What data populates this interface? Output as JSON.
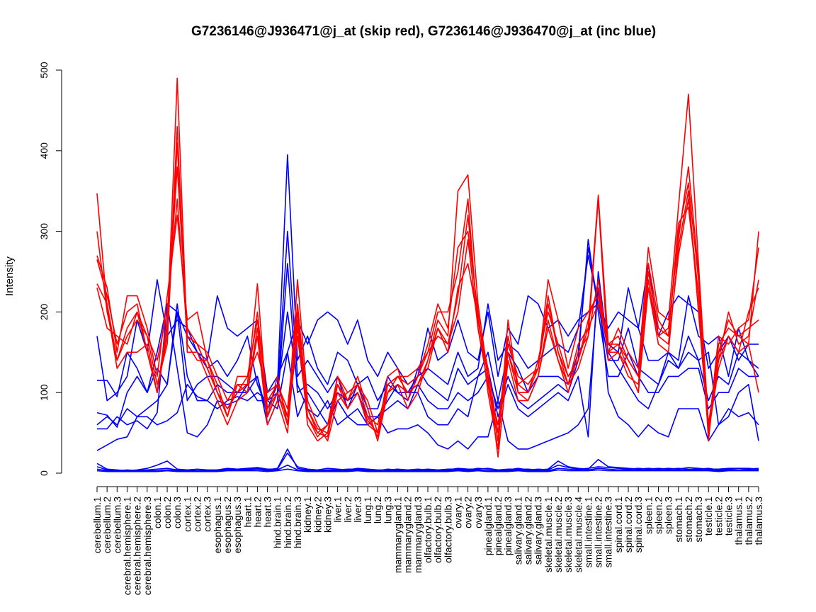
{
  "chart_data": {
    "type": "line",
    "title": "G7236146@J936471@j_at (skip red), G7236146@J936470@j_at (inc blue)",
    "xlabel": "",
    "ylabel": "Intensity",
    "ylim": [
      0,
      500
    ],
    "yticks": [
      0,
      100,
      200,
      300,
      400,
      500
    ],
    "colors": {
      "skip": "#ff0000",
      "inc": "#0000ff"
    },
    "categories": [
      "cerebellum.1",
      "cerebellum.2",
      "cerebellum.3",
      "cerebral.hemisphere.1",
      "cerebral.hemisphere.2",
      "cerebral.hemisphere.3",
      "colon.1",
      "colon.2",
      "colon.3",
      "cortex.1",
      "cortex.2",
      "cortex.3",
      "esophagus.1",
      "esophagus.2",
      "esophagus.3",
      "heart.1",
      "heart.2",
      "heart.3",
      "hind.brain.1",
      "hind.brain.2",
      "hind.brain.3",
      "kidney.1",
      "kidney.2",
      "kidney.3",
      "liver.1",
      "liver.2",
      "liver.3",
      "lung.1",
      "lung.2",
      "lung.3",
      "mammarygland.1",
      "mammarygland.2",
      "mammarygland.3",
      "olfactory.bulb.1",
      "olfactory.bulb.2",
      "olfactory.bulb.3",
      "ovary.1",
      "ovary.2",
      "ovary.3",
      "pinealgland.1",
      "pinealgland.2",
      "pinealgland.3",
      "salivary.gland.1",
      "salivary.gland.2",
      "salivary.gland.3",
      "skeletal.muscle.1",
      "skeletal.muscle.2",
      "skeletal.muscle.3",
      "skeletal.muscle.4",
      "small.intestine.1",
      "small.intestine.2",
      "small.intestine.3",
      "spinal.cord.1",
      "spinal.cord.2",
      "spinal.cord.3",
      "spleen.1",
      "spleen.2",
      "spleen.3",
      "stomach.1",
      "stomach.2",
      "stomach.3",
      "testicle.1",
      "testicle.2",
      "testicle.3",
      "thalamus.1",
      "thalamus.2",
      "thalamus.3"
    ],
    "series": [
      {
        "name": "skip-1",
        "group": "skip",
        "values": [
          347,
          205,
          130,
          150,
          150,
          160,
          100,
          180,
          490,
          160,
          140,
          140,
          100,
          80,
          100,
          110,
          235,
          70,
          120,
          60,
          240,
          90,
          60,
          40,
          90,
          100,
          110,
          70,
          60,
          110,
          120,
          100,
          110,
          130,
          180,
          150,
          230,
          260,
          190,
          120,
          40,
          170,
          110,
          120,
          130,
          240,
          190,
          130,
          180,
          200,
          220,
          150,
          160,
          130,
          100,
          240,
          170,
          180,
          290,
          380,
          250,
          40,
          160,
          180,
          170,
          160,
          300
        ]
      },
      {
        "name": "skip-2",
        "group": "skip",
        "values": [
          300,
          200,
          140,
          180,
          200,
          170,
          140,
          200,
          340,
          170,
          160,
          150,
          120,
          90,
          110,
          110,
          200,
          80,
          100,
          70,
          210,
          80,
          50,
          60,
          110,
          90,
          120,
          80,
          40,
          100,
          120,
          120,
          130,
          150,
          200,
          200,
          250,
          340,
          180,
          110,
          60,
          160,
          120,
          110,
          130,
          220,
          150,
          110,
          160,
          180,
          210,
          160,
          170,
          140,
          120,
          260,
          190,
          170,
          310,
          330,
          220,
          50,
          170,
          160,
          180,
          190,
          280
        ]
      },
      {
        "name": "skip-3",
        "group": "skip",
        "values": [
          270,
          230,
          150,
          220,
          220,
          180,
          120,
          220,
          320,
          190,
          200,
          140,
          110,
          70,
          120,
          120,
          150,
          100,
          110,
          80,
          200,
          70,
          45,
          60,
          120,
          100,
          110,
          90,
          50,
          120,
          130,
          90,
          120,
          160,
          210,
          180,
          280,
          300,
          200,
          100,
          30,
          190,
          100,
          100,
          140,
          200,
          160,
          120,
          140,
          190,
          230,
          150,
          180,
          150,
          130,
          280,
          200,
          190,
          330,
          470,
          260,
          60,
          140,
          200,
          160,
          170,
          240
        ]
      },
      {
        "name": "skip-4",
        "group": "skip",
        "values": [
          265,
          220,
          160,
          200,
          210,
          150,
          100,
          170,
          430,
          150,
          150,
          120,
          90,
          60,
          90,
          100,
          170,
          60,
          90,
          50,
          190,
          60,
          40,
          50,
          100,
          80,
          100,
          60,
          50,
          100,
          110,
          80,
          100,
          140,
          190,
          170,
          350,
          370,
          210,
          120,
          20,
          140,
          90,
          90,
          120,
          180,
          140,
          100,
          150,
          170,
          340,
          140,
          150,
          120,
          110,
          230,
          160,
          150,
          280,
          350,
          200,
          50,
          130,
          170,
          150,
          200,
          230
        ]
      },
      {
        "name": "skip-5",
        "group": "skip",
        "values": [
          235,
          210,
          140,
          170,
          190,
          170,
          110,
          160,
          410,
          170,
          160,
          130,
          100,
          80,
          100,
          120,
          190,
          90,
          110,
          70,
          180,
          80,
          55,
          50,
          120,
          90,
          110,
          70,
          45,
          110,
          120,
          110,
          120,
          150,
          170,
          160,
          220,
          320,
          190,
          130,
          50,
          150,
          110,
          100,
          130,
          210,
          150,
          120,
          140,
          180,
          345,
          160,
          160,
          140,
          120,
          250,
          180,
          170,
          300,
          360,
          240,
          60,
          150,
          190,
          170,
          180,
          190
        ]
      },
      {
        "name": "skip-6",
        "group": "skip",
        "values": [
          230,
          180,
          170,
          160,
          200,
          150,
          100,
          190,
          380,
          180,
          160,
          130,
          100,
          70,
          110,
          100,
          180,
          70,
          100,
          60,
          170,
          70,
          50,
          45,
          110,
          80,
          100,
          65,
          50,
          100,
          110,
          100,
          110,
          140,
          180,
          160,
          200,
          290,
          180,
          110,
          40,
          150,
          100,
          90,
          120,
          190,
          140,
          110,
          130,
          170,
          240,
          150,
          150,
          130,
          100,
          230,
          170,
          160,
          270,
          340,
          220,
          50,
          140,
          170,
          150,
          160,
          100
        ]
      },
      {
        "name": "inc-1",
        "group": "inc",
        "values": [
          170,
          90,
          100,
          120,
          190,
          150,
          240,
          170,
          190,
          180,
          150,
          140,
          220,
          180,
          170,
          180,
          190,
          100,
          120,
          150,
          190,
          160,
          190,
          200,
          190,
          160,
          190,
          140,
          120,
          150,
          130,
          110,
          120,
          180,
          140,
          150,
          190,
          150,
          140,
          200,
          120,
          180,
          160,
          220,
          210,
          180,
          190,
          170,
          190,
          200,
          210,
          180,
          200,
          190,
          180,
          260,
          170,
          200,
          220,
          210,
          200,
          130,
          150,
          170,
          140,
          160,
          160
        ]
      },
      {
        "name": "inc-2",
        "group": "inc",
        "values": [
          115,
          115,
          95,
          150,
          130,
          100,
          150,
          210,
          200,
          170,
          150,
          130,
          140,
          120,
          140,
          170,
          110,
          80,
          110,
          395,
          140,
          170,
          130,
          110,
          150,
          140,
          110,
          120,
          90,
          110,
          100,
          100,
          120,
          130,
          120,
          110,
          150,
          120,
          130,
          210,
          140,
          160,
          150,
          130,
          140,
          150,
          160,
          150,
          180,
          270,
          210,
          160,
          150,
          230,
          180,
          140,
          140,
          150,
          140,
          220,
          170,
          160,
          170,
          120,
          180,
          140,
          120
        ]
      },
      {
        "name": "inc-3",
        "group": "inc",
        "values": [
          75,
          72,
          57,
          100,
          120,
          100,
          130,
          110,
          200,
          90,
          110,
          120,
          120,
          110,
          100,
          100,
          120,
          70,
          100,
          300,
          120,
          140,
          120,
          100,
          120,
          80,
          110,
          80,
          80,
          120,
          100,
          90,
          130,
          110,
          100,
          90,
          130,
          110,
          120,
          150,
          90,
          150,
          130,
          100,
          120,
          120,
          120,
          110,
          150,
          280,
          210,
          140,
          140,
          180,
          130,
          120,
          110,
          140,
          130,
          150,
          140,
          90,
          120,
          110,
          150,
          140,
          130
        ]
      },
      {
        "name": "inc-4",
        "group": "inc",
        "values": [
          60,
          70,
          60,
          80,
          70,
          80,
          90,
          110,
          210,
          120,
          90,
          90,
          110,
          100,
          100,
          110,
          120,
          60,
          90,
          260,
          100,
          110,
          100,
          80,
          100,
          90,
          100,
          70,
          70,
          80,
          90,
          80,
          110,
          90,
          80,
          80,
          100,
          90,
          100,
          120,
          80,
          120,
          90,
          80,
          90,
          100,
          110,
          100,
          140,
          290,
          200,
          120,
          120,
          150,
          120,
          100,
          100,
          120,
          120,
          130,
          130,
          80,
          100,
          100,
          130,
          120,
          120
        ]
      },
      {
        "name": "inc-5",
        "group": "inc",
        "values": [
          55,
          55,
          70,
          60,
          65,
          55,
          75,
          210,
          130,
          50,
          45,
          60,
          90,
          85,
          90,
          110,
          90,
          90,
          80,
          150,
          70,
          100,
          80,
          60,
          90,
          70,
          80,
          60,
          70,
          90,
          110,
          100,
          100,
          70,
          60,
          60,
          80,
          70,
          120,
          130,
          70,
          110,
          80,
          70,
          80,
          90,
          100,
          90,
          120,
          45,
          250,
          150,
          130,
          110,
          90,
          80,
          110,
          150,
          130,
          170,
          140,
          150,
          60,
          70,
          100,
          110,
          40
        ]
      },
      {
        "name": "inc-6",
        "group": "inc",
        "values": [
          28,
          35,
          42,
          45,
          70,
          70,
          60,
          65,
          75,
          110,
          95,
          90,
          80,
          90,
          95,
          90,
          100,
          90,
          100,
          200,
          110,
          80,
          70,
          90,
          60,
          70,
          60,
          60,
          70,
          50,
          55,
          55,
          60,
          50,
          35,
          30,
          40,
          30,
          45,
          45,
          90,
          40,
          30,
          30,
          35,
          40,
          45,
          50,
          60,
          80,
          230,
          100,
          70,
          60,
          45,
          60,
          50,
          45,
          80,
          80,
          80,
          40,
          60,
          80,
          70,
          75,
          60
        ]
      },
      {
        "name": "inc-7",
        "group": "inc",
        "values": [
          12,
          5,
          4,
          3,
          4,
          6,
          10,
          15,
          5,
          4,
          3,
          3,
          4,
          5,
          5,
          6,
          7,
          5,
          5,
          25,
          8,
          5,
          4,
          6,
          5,
          4,
          6,
          5,
          4,
          4,
          5,
          4,
          5,
          4,
          3,
          4,
          6,
          5,
          5,
          6,
          4,
          5,
          5,
          5,
          4,
          5,
          15,
          8,
          6,
          5,
          17,
          8,
          7,
          6,
          5,
          6,
          5,
          6,
          5,
          7,
          6,
          5,
          5,
          6,
          6,
          5,
          6
        ]
      },
      {
        "name": "inc-8",
        "group": "inc",
        "values": [
          8,
          4,
          3,
          4,
          3,
          4,
          5,
          6,
          4,
          4,
          5,
          4,
          4,
          6,
          5,
          5,
          6,
          4,
          6,
          30,
          6,
          4,
          3,
          4,
          4,
          5,
          5,
          4,
          3,
          5,
          4,
          4,
          4,
          5,
          4,
          5,
          5,
          4,
          6,
          5,
          4,
          4,
          6,
          4,
          5,
          4,
          10,
          7,
          5,
          6,
          8,
          7,
          6,
          5,
          6,
          5,
          6,
          5,
          6,
          5,
          5,
          6,
          4,
          5,
          6,
          6,
          5
        ]
      },
      {
        "name": "inc-9",
        "group": "inc",
        "values": [
          5,
          3,
          2,
          3,
          2,
          3,
          3,
          4,
          3,
          3,
          3,
          3,
          3,
          4,
          4,
          4,
          5,
          3,
          4,
          10,
          4,
          3,
          2,
          3,
          3,
          3,
          4,
          3,
          2,
          3,
          3,
          3,
          3,
          3,
          3,
          3,
          4,
          3,
          4,
          3,
          3,
          3,
          4,
          3,
          3,
          3,
          6,
          5,
          4,
          4,
          6,
          5,
          4,
          4,
          4,
          4,
          4,
          4,
          4,
          4,
          4,
          4,
          3,
          4,
          4,
          4,
          4
        ]
      },
      {
        "name": "inc-10",
        "group": "inc",
        "values": [
          3,
          2,
          2,
          2,
          2,
          2,
          2,
          3,
          2,
          2,
          2,
          2,
          2,
          3,
          3,
          3,
          3,
          2,
          3,
          5,
          3,
          2,
          2,
          2,
          2,
          2,
          3,
          2,
          2,
          2,
          2,
          2,
          2,
          2,
          2,
          2,
          3,
          2,
          3,
          2,
          2,
          2,
          3,
          2,
          2,
          2,
          4,
          3,
          3,
          3,
          4,
          3,
          3,
          3,
          3,
          3,
          3,
          3,
          3,
          3,
          3,
          3,
          2,
          3,
          3,
          3,
          3
        ]
      }
    ]
  }
}
